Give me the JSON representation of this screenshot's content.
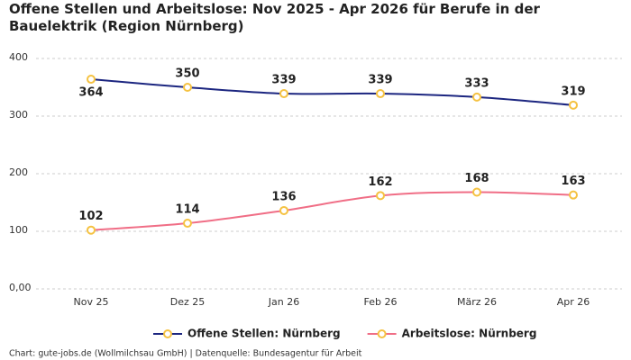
{
  "chart_data": {
    "type": "line",
    "title": "Offene Stellen und Arbeitslose: Nov 2025 - Apr 2026 für Berufe in der Bauelektrik (Region Nürnberg)",
    "categories": [
      "Nov 25",
      "Dez 25",
      "Jan 26",
      "Feb 26",
      "März 26",
      "Apr 26"
    ],
    "series": [
      {
        "name": "Offene Stellen: Nürnberg",
        "color": "#1c2680",
        "values": [
          364,
          350,
          339,
          339,
          333,
          319
        ]
      },
      {
        "name": "Arbeitslose: Nürnberg",
        "color": "#f06e86",
        "values": [
          102,
          114,
          136,
          162,
          168,
          163
        ]
      }
    ],
    "marker_color": "#f5c242",
    "ylim": [
      0,
      400
    ],
    "yticks": [
      {
        "value": 0,
        "label": "0,00"
      },
      100,
      200,
      300,
      400
    ],
    "grid": true,
    "legend": "bottom",
    "source": "Chart: gute-jobs.de (Wollmilchsau GmbH) | Datenquelle: Bundesagentur für Arbeit"
  }
}
